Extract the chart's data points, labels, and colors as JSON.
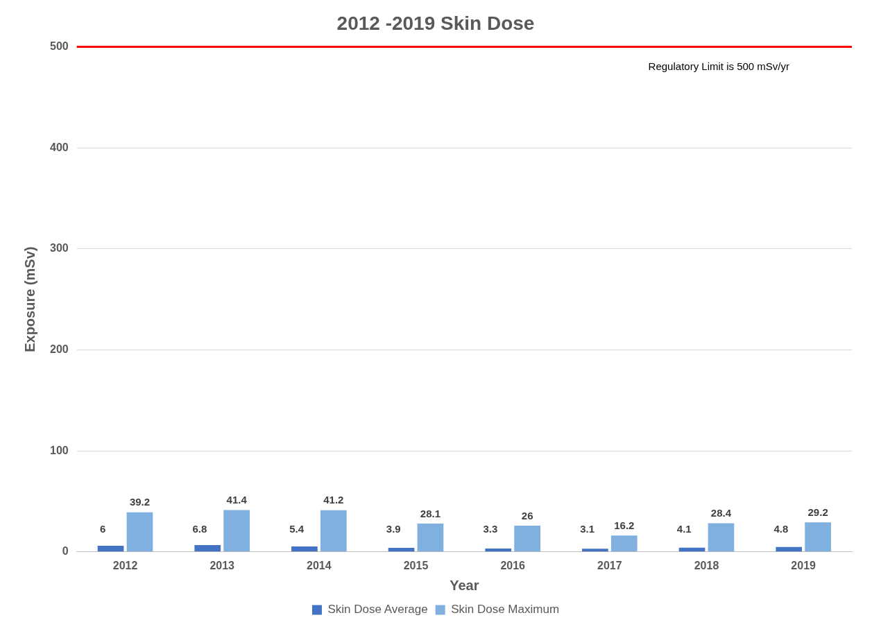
{
  "chart_data": {
    "type": "bar",
    "title": "2012 -2019 Skin Dose",
    "xlabel": "Year",
    "ylabel": "Exposure (mSv)",
    "categories": [
      "2012",
      "2013",
      "2014",
      "2015",
      "2016",
      "2017",
      "2018",
      "2019"
    ],
    "series": [
      {
        "name": "Skin Dose Average",
        "color": "#4472c4",
        "values": [
          6,
          6.8,
          5.4,
          3.9,
          3.3,
          3.1,
          4.1,
          4.8
        ]
      },
      {
        "name": "Skin Dose Maximum",
        "color": "#7fb0e0",
        "values": [
          39.2,
          41.4,
          41.2,
          28.1,
          26,
          16.2,
          28.4,
          29.2
        ]
      }
    ],
    "ylim": [
      0,
      500
    ],
    "yticks": [
      0,
      100,
      200,
      300,
      400,
      500
    ],
    "grid": "y",
    "legend": "bottom",
    "data_labels": true,
    "ref_lines": [
      {
        "axis": "y",
        "value": 500,
        "label": "Regulatory Limit is 500 mSv/yr",
        "color": "#ff0000"
      }
    ]
  }
}
